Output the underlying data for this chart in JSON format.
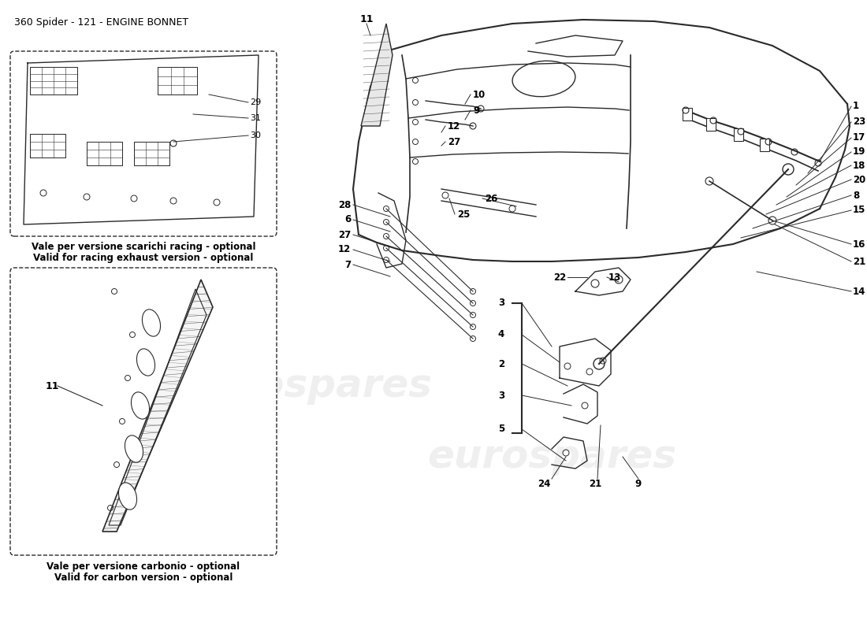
{
  "title": "360 Spider - 121 - ENGINE BONNET",
  "bg": "#ffffff",
  "watermark": "eurospares",
  "wm_color": "#cccccc",
  "box1_it": "Vale per versione scarichi racing - optional",
  "box1_en": "Valid for racing exhaust version - optional",
  "box2_it": "Vale per versione carbonio - optional",
  "box2_en": "Valid for carbon version - optional",
  "gray": "#2a2a2a",
  "light_gray": "#aaaaaa"
}
